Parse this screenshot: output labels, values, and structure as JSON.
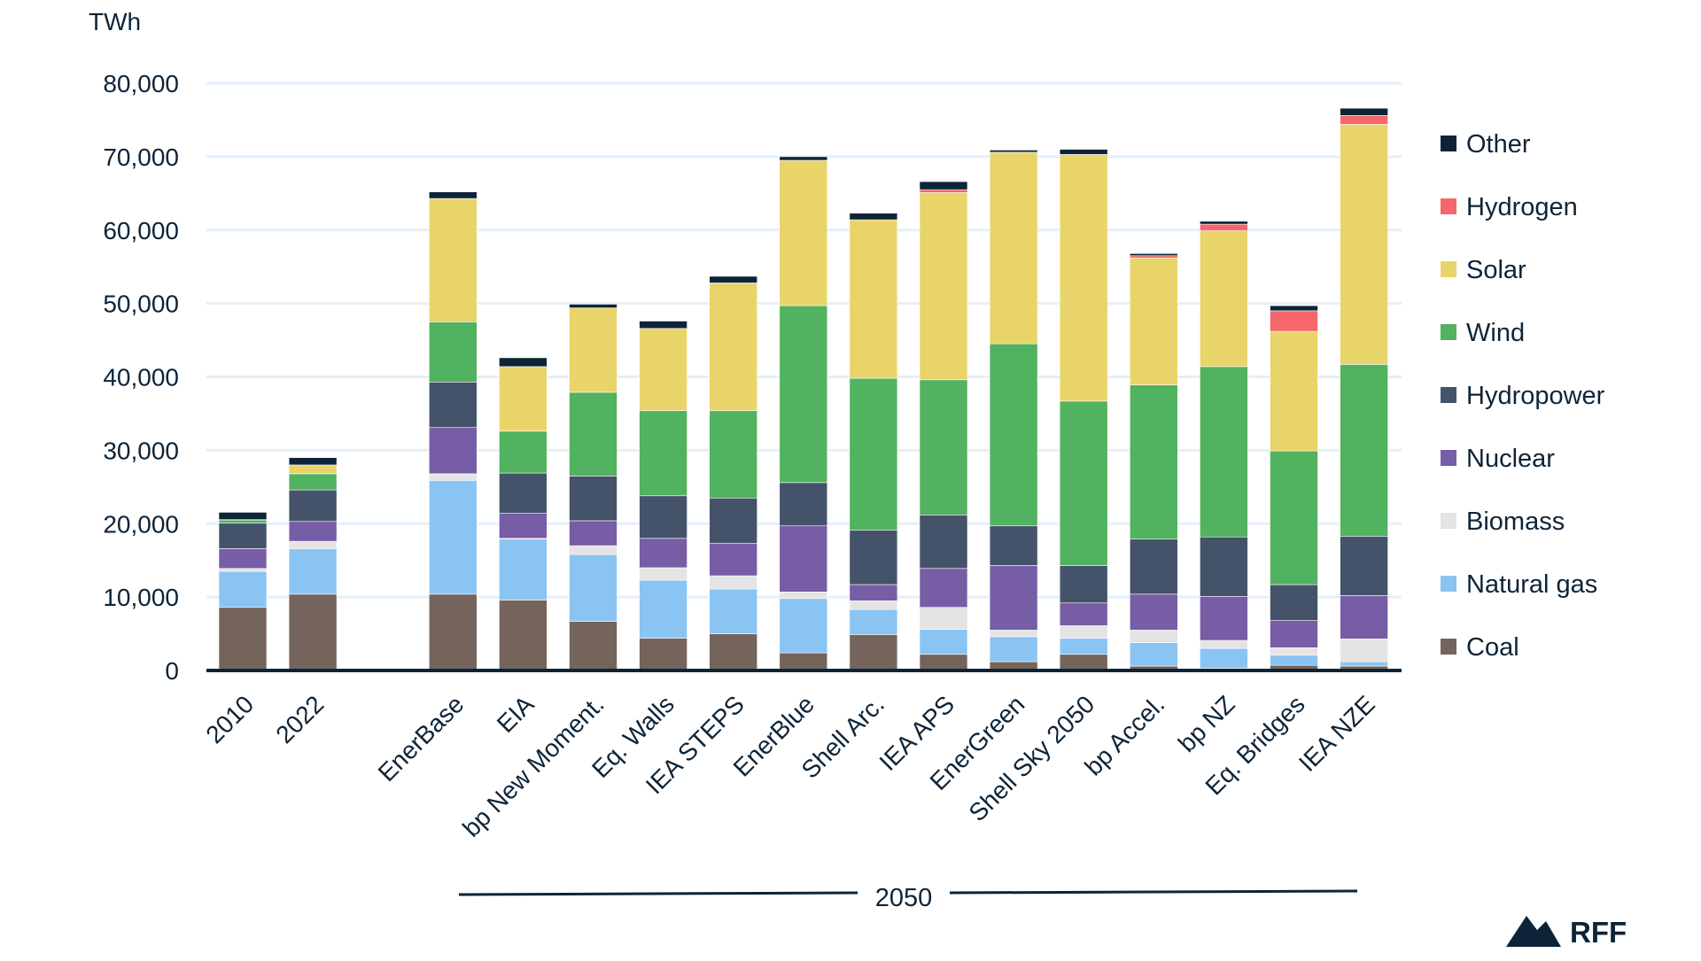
{
  "chart_data": {
    "type": "bar",
    "stacked": true,
    "ylabel": "TWh",
    "ylim": [
      0,
      80000
    ],
    "yticks": [
      0,
      10000,
      20000,
      30000,
      40000,
      50000,
      60000,
      70000,
      80000
    ],
    "ytick_labels": [
      "0",
      "10,000",
      "20,000",
      "30,000",
      "40,000",
      "50,000",
      "60,000",
      "70,000",
      "80,000"
    ],
    "grid": true,
    "legend_position": "right",
    "group_label": "2050",
    "categories": [
      "2010",
      "2022",
      "EnerBase",
      "EIA",
      "bp New Moment.",
      "Eq. Walls",
      "IEA STEPS",
      "EnerBlue",
      "Shell Arc.",
      "IEA APS",
      "EnerGreen",
      "Shell Sky 2050",
      "bp Accel.",
      "bp NZ",
      "Eq. Bridges",
      "IEA NZE"
    ],
    "series": [
      {
        "name": "Coal",
        "color": "#74645b",
        "values": [
          8600,
          10400,
          10400,
          9600,
          6700,
          4400,
          5000,
          2400,
          4900,
          2200,
          1200,
          2200,
          600,
          300,
          700,
          600
        ]
      },
      {
        "name": "Natural gas",
        "color": "#8ac4f2",
        "values": [
          4900,
          6200,
          15500,
          8300,
          9100,
          7900,
          6100,
          7400,
          3400,
          3400,
          3400,
          2200,
          3200,
          2700,
          1400,
          600
        ]
      },
      {
        "name": "Biomass",
        "color": "#e4e4e4",
        "values": [
          400,
          1000,
          900,
          100,
          1200,
          1700,
          1800,
          900,
          1200,
          3000,
          900,
          1700,
          1700,
          1100,
          1000,
          3100
        ]
      },
      {
        "name": "Nuclear",
        "color": "#775ca6",
        "values": [
          2700,
          2700,
          6300,
          3400,
          3400,
          4000,
          4400,
          9000,
          2200,
          5300,
          8800,
          3100,
          4900,
          6000,
          3700,
          5900
        ]
      },
      {
        "name": "Hydropower",
        "color": "#445369",
        "values": [
          3500,
          4300,
          6200,
          5500,
          6100,
          5800,
          6200,
          5900,
          7400,
          7300,
          5400,
          5100,
          7500,
          8100,
          4900,
          8100
        ]
      },
      {
        "name": "Wind",
        "color": "#51b25f",
        "values": [
          400,
          2200,
          8200,
          5700,
          11400,
          11600,
          11900,
          24100,
          20700,
          18400,
          24800,
          22400,
          21000,
          23200,
          18200,
          23400
        ]
      },
      {
        "name": "Solar",
        "color": "#e9d46a",
        "values": [
          50,
          1200,
          16800,
          8800,
          11500,
          11200,
          17400,
          19800,
          21600,
          25500,
          26100,
          33600,
          17300,
          18500,
          16300,
          32700
        ]
      },
      {
        "name": "Hydrogen",
        "color": "#f4676a",
        "values": [
          0,
          0,
          0,
          0,
          0,
          0,
          0,
          0,
          0,
          400,
          0,
          0,
          300,
          900,
          2800,
          1200
        ]
      },
      {
        "name": "Other",
        "color": "#0d2438",
        "values": [
          1000,
          1000,
          900,
          1200,
          500,
          1000,
          900,
          500,
          900,
          1100,
          300,
          700,
          300,
          400,
          700,
          1000
        ]
      }
    ]
  },
  "branding": {
    "logo_text": "RFF"
  }
}
